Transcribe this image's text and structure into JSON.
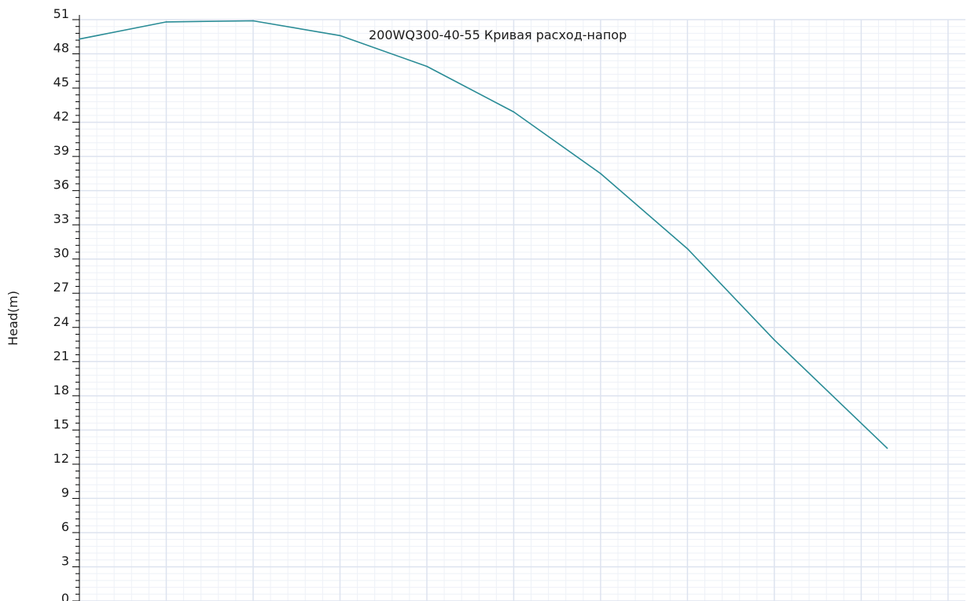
{
  "chart_data": {
    "type": "line",
    "title": "200WQ300-40-55 Кривая расход-напор",
    "xlabel": "",
    "ylabel": "Head(m)",
    "ylim": [
      0,
      51
    ],
    "yticks": [
      0,
      3,
      6,
      9,
      12,
      15,
      18,
      21,
      24,
      27,
      30,
      33,
      36,
      39,
      42,
      45,
      48,
      51
    ],
    "ytick_labels": [
      "0",
      "3",
      "6",
      "9",
      "12",
      "15",
      "18",
      "21",
      "24",
      "27",
      "30",
      "33",
      "36",
      "39",
      "42",
      "45",
      "48",
      "51"
    ],
    "xlim": [
      0,
      10.2
    ],
    "grid": true,
    "series": [
      {
        "x": [
          0,
          1,
          2,
          3,
          4,
          5,
          6,
          7,
          8,
          9.3
        ],
        "values": [
          49.3,
          50.8,
          50.9,
          49.6,
          46.9,
          42.9,
          37.5,
          30.9,
          22.9,
          13.4
        ]
      }
    ],
    "colors": {
      "line": "#2a8c96",
      "grid_major": "#dde3ef",
      "grid_minor": "#eef1f7",
      "axis": "#000000"
    }
  }
}
